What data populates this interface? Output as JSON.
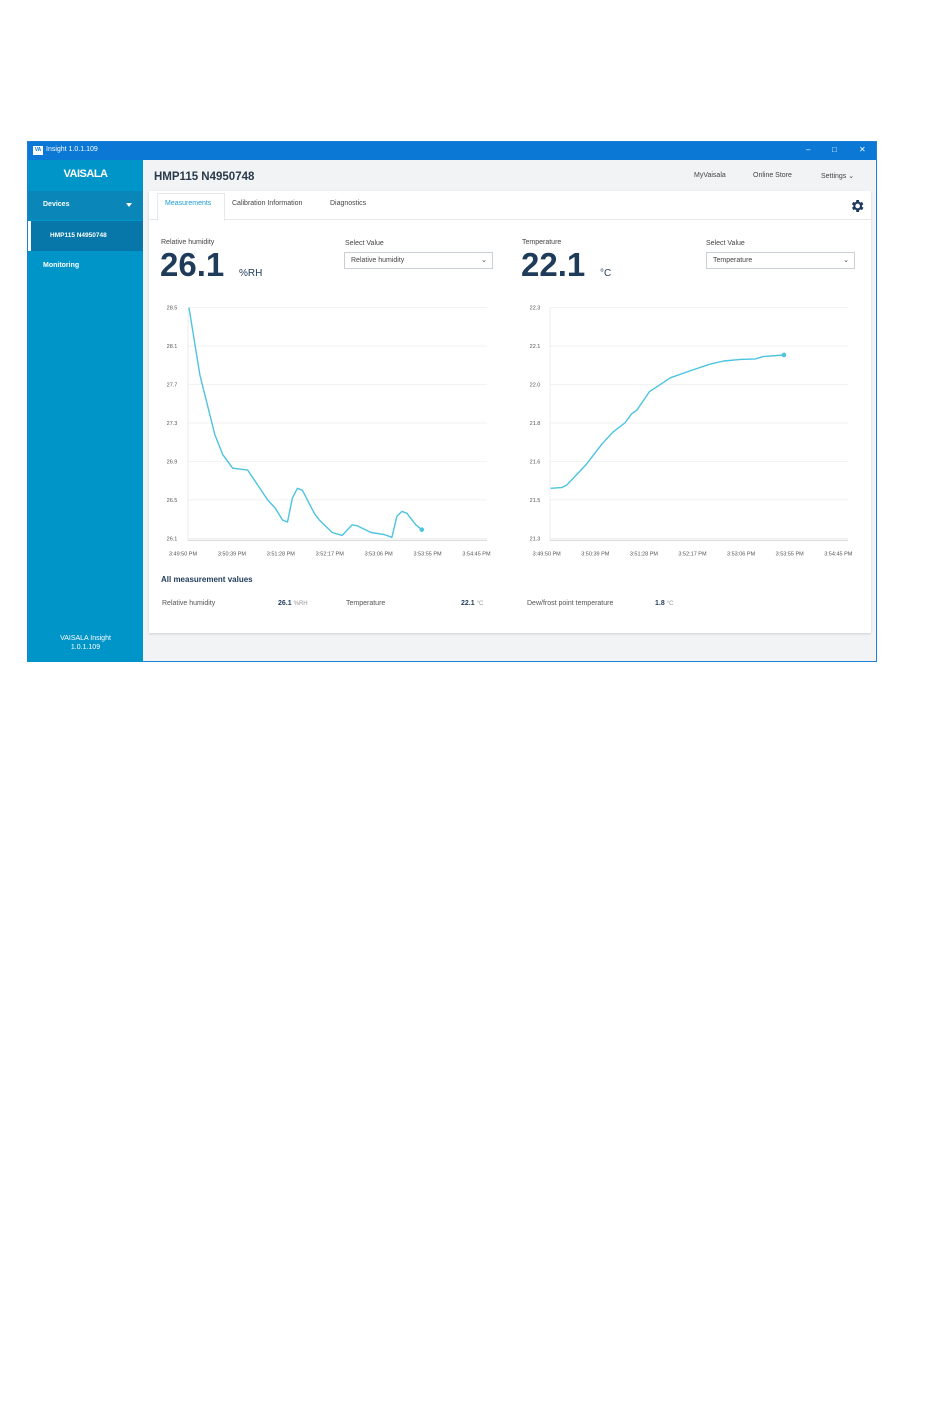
{
  "window": {
    "title": "Insight 1.0.1.109",
    "logo": "VA",
    "controls": [
      "minimize-icon",
      "maximize-icon",
      "close-icon"
    ]
  },
  "sidebar": {
    "brand": "VAISALA",
    "devices_label": "Devices",
    "device_item": "HMP115 N4950748",
    "monitoring_label": "Monitoring",
    "version_line1": "VAISALA Insight",
    "version_line2": "1.0.1.109"
  },
  "header": {
    "title": "HMP115 N4950748",
    "links": [
      "MyVaisala",
      "Online Store",
      "Settings"
    ]
  },
  "tabs": [
    "Measurements",
    "Calibration Information",
    "Diagnostics"
  ],
  "panels": [
    {
      "label": "Relative humidity",
      "value": "26.1",
      "unit": "%RH",
      "select_label": "Select Value",
      "select_value": "Relative humidity"
    },
    {
      "label": "Temperature",
      "value": "22.1",
      "unit": "°C",
      "select_label": "Select Value",
      "select_value": "Temperature"
    }
  ],
  "all_values": {
    "title": "All measurement values",
    "items": [
      {
        "label": "Relative humidity",
        "value": "26.1",
        "unit": "%RH"
      },
      {
        "label": "Temperature",
        "value": "22.1",
        "unit": "°C"
      },
      {
        "label": "Dew/frost point temperature",
        "value": "1.8",
        "unit": "°C"
      }
    ]
  },
  "colors": {
    "accent": "#0095c8",
    "titlebar": "#0a78d4",
    "line": "#4cc3e0",
    "text_dark": "#1f3b5a"
  },
  "chart_data": [
    {
      "type": "line",
      "title": "Relative humidity",
      "x_unit": "seconds since 3:49:50 PM",
      "xlim": [
        0,
        295
      ],
      "xticks": [
        "3:49:50 PM",
        "3:50:39 PM",
        "3:51:28 PM",
        "3:52:17 PM",
        "3:53:06 PM",
        "3:53:55 PM",
        "3:54:45 PM"
      ],
      "yticks": [
        "28.5",
        "28.1",
        "27.7",
        "27.3",
        "26.9",
        "26.5",
        "26.1"
      ],
      "ylim": [
        26.1,
        28.5
      ],
      "grid": true,
      "series": [
        {
          "name": "Relative humidity",
          "x": [
            6,
            17,
            32,
            40,
            50,
            65,
            85,
            93,
            100,
            105,
            110,
            115,
            120,
            132,
            137,
            150,
            160,
            170,
            175,
            189,
            202,
            210,
            215,
            220,
            225,
            234,
            240
          ],
          "y": [
            28.5,
            27.8,
            27.18,
            26.97,
            26.83,
            26.81,
            26.5,
            26.41,
            26.29,
            26.27,
            26.52,
            26.62,
            26.6,
            26.36,
            26.29,
            26.16,
            26.13,
            26.24,
            26.23,
            26.16,
            26.14,
            26.11,
            26.33,
            26.38,
            26.36,
            26.24,
            26.19
          ]
        }
      ]
    },
    {
      "type": "line",
      "title": "Temperature",
      "x_unit": "seconds since 3:49:50 PM",
      "xlim": [
        0,
        295
      ],
      "xticks": [
        "3:49:50 PM",
        "3:50:39 PM",
        "3:51:28 PM",
        "3:52:17 PM",
        "3:53:06 PM",
        "3:53:55 PM",
        "3:54:45 PM"
      ],
      "yticks": [
        "22.3",
        "22.1",
        "22.0",
        "21.8",
        "21.6",
        "21.5",
        "21.3"
      ],
      "ylim": [
        21.3,
        22.3
      ],
      "grid": true,
      "series": [
        {
          "name": "Temperature",
          "x": [
            4,
            15,
            20,
            30,
            40,
            46,
            56,
            67,
            79,
            86,
            91,
            104,
            116,
            125,
            145,
            165,
            179,
            196,
            211,
            219,
            240
          ],
          "y": [
            21.517,
            21.52,
            21.53,
            21.575,
            21.62,
            21.654,
            21.71,
            21.76,
            21.8,
            21.84,
            21.855,
            21.936,
            21.97,
            21.996,
            22.026,
            22.055,
            22.069,
            22.076,
            22.078,
            22.088,
            22.095
          ]
        }
      ]
    }
  ]
}
